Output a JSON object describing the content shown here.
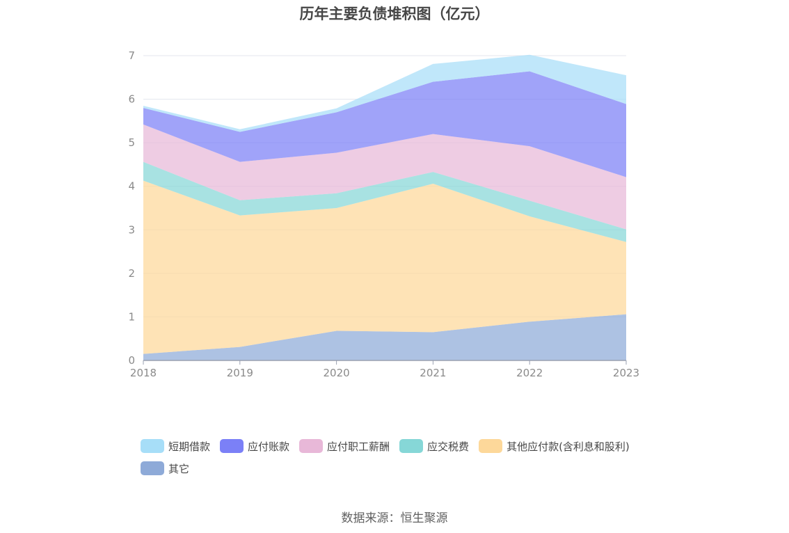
{
  "title": "历年主要负债堆积图（亿元）",
  "source": "数据来源：恒生聚源",
  "chart_data": {
    "type": "area",
    "stacked": true,
    "title": "历年主要负债堆积图（亿元）",
    "x": [
      "2018",
      "2019",
      "2020",
      "2021",
      "2022",
      "2023"
    ],
    "ylim": [
      0,
      7
    ],
    "yticks": [
      "0",
      "1",
      "2",
      "3",
      "4",
      "5",
      "6",
      "7"
    ],
    "grid": true,
    "legend_position": "bottom",
    "series": [
      {
        "name": "其它",
        "color": "#8eaad8",
        "values": [
          0.15,
          0.31,
          0.68,
          0.65,
          0.89,
          1.06
        ]
      },
      {
        "name": "其他应付款(含利息和股利)",
        "color": "#fdd89a",
        "values": [
          3.98,
          3.02,
          2.82,
          3.41,
          2.42,
          1.66
        ]
      },
      {
        "name": "应交税费",
        "color": "#86d7d7",
        "values": [
          0.43,
          0.35,
          0.34,
          0.27,
          0.36,
          0.29
        ]
      },
      {
        "name": "应付职工薪酬",
        "color": "#e8b8d8",
        "values": [
          0.86,
          0.88,
          0.93,
          0.87,
          1.25,
          1.2
        ]
      },
      {
        "name": "应付账款",
        "color": "#7b80f7",
        "values": [
          0.38,
          0.69,
          0.93,
          1.2,
          1.72,
          1.68
        ]
      },
      {
        "name": "短期借款",
        "color": "#a7def8",
        "values": [
          0.05,
          0.06,
          0.09,
          0.41,
          0.38,
          0.66
        ]
      }
    ],
    "legend_order": [
      "短期借款",
      "应付账款",
      "应付职工薪酬",
      "应交税费",
      "其他应付款(含利息和股利)",
      "其它"
    ]
  }
}
